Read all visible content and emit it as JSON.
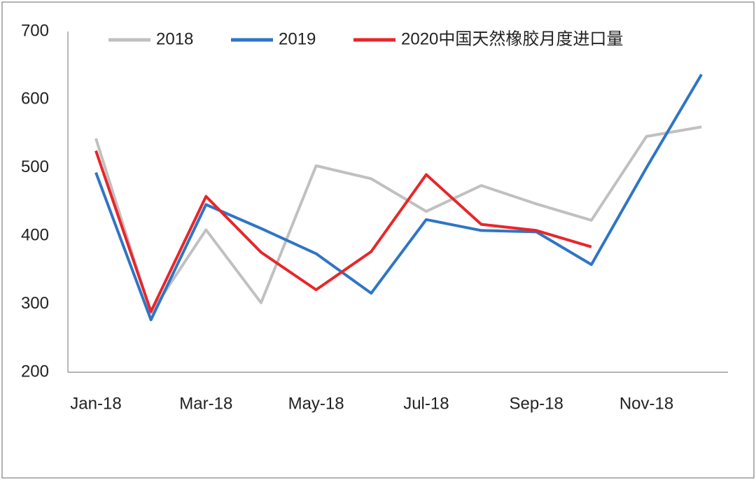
{
  "chart_data": {
    "type": "line",
    "categories": [
      "Jan-18",
      null,
      "Mar-18",
      null,
      "May-18",
      null,
      "Jul-18",
      null,
      "Sep-18",
      null,
      "Nov-18",
      null
    ],
    "series": [
      {
        "name": "2018",
        "color": "#c0c0c0",
        "values": [
          543,
          287,
          409,
          302,
          503,
          484,
          436,
          474,
          447,
          423,
          546,
          560
        ]
      },
      {
        "name": "2019",
        "color": "#2e75c6",
        "values": [
          493,
          277,
          446,
          411,
          374,
          316,
          424,
          408,
          406,
          358,
          500,
          637
        ]
      },
      {
        "name": "2020中国天然橡胶月度进口量",
        "color": "#e8262a",
        "values": [
          525,
          289,
          458,
          376,
          321,
          377,
          490,
          417,
          408,
          384,
          null,
          null
        ]
      }
    ],
    "ylim": [
      200,
      700
    ],
    "yticks": [
      200,
      300,
      400,
      500,
      600,
      700
    ],
    "grid": false
  }
}
